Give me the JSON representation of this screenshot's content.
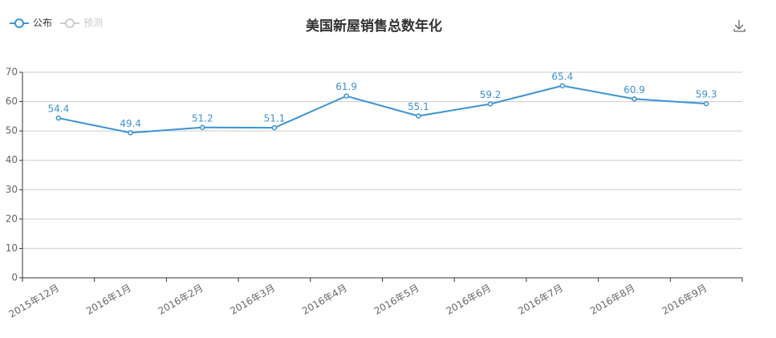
{
  "chart_data": {
    "type": "line",
    "title": "美国新屋销售总数年化",
    "categories": [
      "2015年12月",
      "2016年1月",
      "2016年2月",
      "2016年3月",
      "2016年4月",
      "2016年5月",
      "2016年6月",
      "2016年7月",
      "2016年8月",
      "2016年9月"
    ],
    "series": [
      {
        "name": "公布",
        "color": "#3a93d6",
        "values": [
          54.4,
          49.4,
          51.2,
          51.1,
          61.9,
          55.1,
          59.2,
          65.4,
          60.9,
          59.3
        ]
      },
      {
        "name": "预测",
        "color": "#cccccc",
        "values": [
          null,
          null,
          null,
          null,
          null,
          null,
          null,
          null,
          null,
          null
        ]
      }
    ],
    "ylim": [
      0,
      70
    ],
    "yticks": [
      0,
      10,
      20,
      30,
      40,
      50,
      60,
      70
    ],
    "grid": true
  }
}
